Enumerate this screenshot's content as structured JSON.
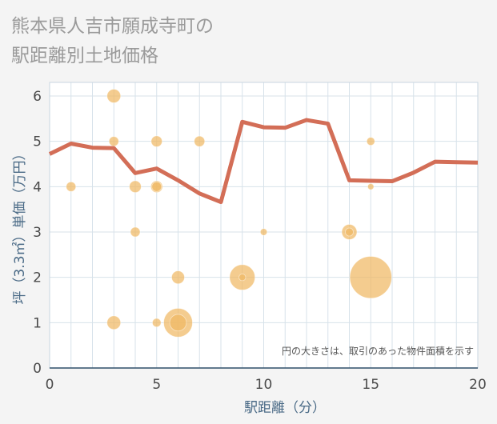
{
  "chart_data": {
    "type": "scatter",
    "title": [
      "熊本県人吉市願成寺町の",
      "駅距離別土地価格"
    ],
    "xlabel": "駅距離（分）",
    "ylabel": "坪（3.3㎡）単価（万円）",
    "xlim": [
      0,
      20
    ],
    "ylim": [
      0,
      6.3
    ],
    "xticks": [
      0,
      5,
      10,
      15,
      20
    ],
    "yticks": [
      0,
      1,
      2,
      3,
      4,
      5,
      6
    ],
    "note": "円の大きさは、取引のあった物件面積を示す",
    "colors": {
      "bubble": "#f0b964",
      "line": "#d36e57",
      "grid": "#d7e2ea",
      "plot_bg": "#ffffff"
    },
    "bubbles": [
      {
        "x": 1,
        "y": 4,
        "size": 1
      },
      {
        "x": 3,
        "y": 6,
        "size": 2
      },
      {
        "x": 3,
        "y": 5,
        "size": 1
      },
      {
        "x": 3,
        "y": 1,
        "size": 2
      },
      {
        "x": 4,
        "y": 4,
        "size": 1.5
      },
      {
        "x": 4,
        "y": 3,
        "size": 1
      },
      {
        "x": 5,
        "y": 5,
        "size": 1.3
      },
      {
        "x": 5,
        "y": 4,
        "size": 1.5
      },
      {
        "x": 5,
        "y": 4,
        "size": 1
      },
      {
        "x": 5,
        "y": 1,
        "size": 0.8
      },
      {
        "x": 6,
        "y": 2,
        "size": 1.8
      },
      {
        "x": 6,
        "y": 1,
        "size": 9
      },
      {
        "x": 6,
        "y": 1,
        "size": 3
      },
      {
        "x": 7,
        "y": 5,
        "size": 1.2
      },
      {
        "x": 9,
        "y": 2,
        "size": 7
      },
      {
        "x": 9,
        "y": 2,
        "size": 0.5
      },
      {
        "x": 10,
        "y": 3,
        "size": 0.5
      },
      {
        "x": 14,
        "y": 3,
        "size": 2.5
      },
      {
        "x": 14,
        "y": 3,
        "size": 0.7
      },
      {
        "x": 15,
        "y": 5,
        "size": 0.7
      },
      {
        "x": 15,
        "y": 4,
        "size": 0.4
      },
      {
        "x": 15,
        "y": 2,
        "size": 19
      }
    ],
    "line": {
      "x": [
        0,
        1,
        2,
        3,
        4,
        5,
        6,
        7,
        8,
        9,
        10,
        11,
        12,
        13,
        14,
        15,
        16,
        17,
        18,
        19,
        20
      ],
      "y": [
        4.72,
        4.95,
        4.86,
        4.85,
        4.3,
        4.4,
        4.14,
        3.85,
        3.66,
        5.43,
        5.31,
        5.3,
        5.47,
        5.39,
        4.14,
        4.13,
        4.12,
        4.31,
        4.55,
        4.54,
        4.53
      ]
    }
  }
}
